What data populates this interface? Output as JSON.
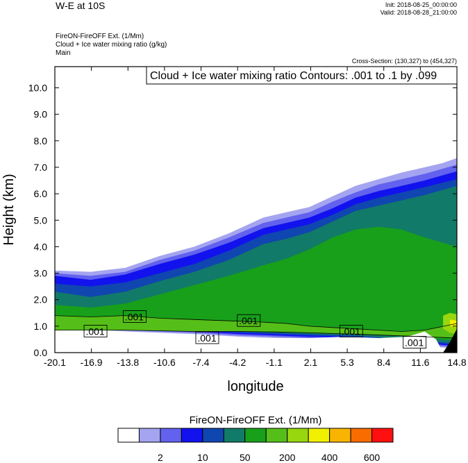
{
  "header": {
    "title": "W-E at 10S",
    "init": "Init: 2018-08-25_00:00:00",
    "valid": "Valid: 2018-08-28_21:00:00",
    "field_line1": "FireON-FireOFF Ext.   (1/Mm)",
    "field_line2": "Cloud + Ice water mixing ratio   (g/kg)",
    "field_line3": "Main",
    "cross_section": "Cross-Section: (130,327) to (454,327)"
  },
  "chart_data": {
    "type": "heatmap",
    "title": "Cloud + Ice water mixing ratio Contours: .001 to .1 by .099",
    "xlabel": "longitude",
    "ylabel": "Height (km)",
    "x_ticks": [
      "-20.1",
      "-16.9",
      "-13.8",
      "-10.6",
      "-7.4",
      "-4.2",
      "-1.1",
      "2.1",
      "5.3",
      "8.4",
      "11.6",
      "14.8"
    ],
    "y_ticks": [
      "0.0",
      "1.0",
      "2.0",
      "3.0",
      "4.0",
      "5.0",
      "6.0",
      "7.0",
      "8.0",
      "9.0",
      "10.0"
    ],
    "xlim": [
      -20.1,
      14.8
    ],
    "ylim": [
      0,
      10.8
    ],
    "colorbar": {
      "title": "FireON-FireOFF Ext.  (1/Mm)",
      "colors": [
        "#ffffff",
        "#a4a4f0",
        "#6262ee",
        "#1212ee",
        "#1046b0",
        "#127a68",
        "#18a01a",
        "#56be18",
        "#98d60e",
        "#f0f000",
        "#f8b400",
        "#f86c00",
        "#ff1010"
      ],
      "labels": [
        {
          "after_box": 1,
          "text": "2"
        },
        {
          "after_box": 3,
          "text": "10"
        },
        {
          "after_box": 5,
          "text": "50"
        },
        {
          "after_box": 7,
          "text": "200"
        },
        {
          "after_box": 9,
          "text": "400"
        },
        {
          "after_box": 11,
          "text": "600"
        }
      ]
    },
    "layers": [
      {
        "level": 1,
        "color": "#a4a4f0",
        "top": [
          [
            -20.1,
            3.1
          ],
          [
            -17,
            3.05
          ],
          [
            -14,
            3.2
          ],
          [
            -11,
            3.65
          ],
          [
            -8,
            4.0
          ],
          [
            -5,
            4.5
          ],
          [
            -2,
            5.1
          ],
          [
            0,
            5.3
          ],
          [
            2,
            5.5
          ],
          [
            4,
            5.9
          ],
          [
            6,
            6.3
          ],
          [
            8,
            6.55
          ],
          [
            10,
            6.8
          ],
          [
            12,
            7.0
          ],
          [
            13.5,
            7.15
          ],
          [
            14.8,
            7.35
          ]
        ],
        "bottom": [
          [
            -20.1,
            0.95
          ],
          [
            -14,
            0.8
          ],
          [
            -8,
            0.7
          ],
          [
            -4,
            0.6
          ],
          [
            -1,
            0.55
          ],
          [
            2,
            0.5
          ],
          [
            6,
            0.42
          ],
          [
            9,
            0.32
          ],
          [
            12,
            0.25
          ],
          [
            14.8,
            0.15
          ]
        ]
      },
      {
        "level": 2,
        "color": "#6262ee",
        "top": [
          [
            -20.1,
            3.0
          ],
          [
            -17,
            2.9
          ],
          [
            -14,
            3.05
          ],
          [
            -11,
            3.5
          ],
          [
            -8,
            3.85
          ],
          [
            -5,
            4.35
          ],
          [
            -2,
            4.9
          ],
          [
            0,
            5.1
          ],
          [
            2,
            5.3
          ],
          [
            4,
            5.7
          ],
          [
            6,
            6.05
          ],
          [
            8,
            6.35
          ],
          [
            10,
            6.55
          ],
          [
            12,
            6.75
          ],
          [
            14.8,
            7.1
          ]
        ],
        "bottom": [
          [
            -20.1,
            1.0
          ],
          [
            -14,
            0.85
          ],
          [
            -8,
            0.75
          ],
          [
            -4,
            0.65
          ],
          [
            -1,
            0.6
          ],
          [
            2,
            0.55
          ],
          [
            6,
            0.5
          ],
          [
            9,
            0.4
          ],
          [
            12,
            0.3
          ],
          [
            14.8,
            0.2
          ]
        ]
      },
      {
        "level": 3,
        "color": "#1212ee",
        "top": [
          [
            -20.1,
            2.9
          ],
          [
            -17,
            2.75
          ],
          [
            -14,
            2.95
          ],
          [
            -11,
            3.35
          ],
          [
            -8,
            3.7
          ],
          [
            -5,
            4.15
          ],
          [
            -2,
            4.7
          ],
          [
            0,
            4.9
          ],
          [
            2,
            5.1
          ],
          [
            4,
            5.45
          ],
          [
            6,
            5.85
          ],
          [
            8,
            6.1
          ],
          [
            10,
            6.3
          ],
          [
            12,
            6.5
          ],
          [
            14.8,
            6.85
          ]
        ],
        "bottom": [
          [
            -20.1,
            1.05
          ],
          [
            -14,
            0.9
          ],
          [
            -8,
            0.8
          ],
          [
            -4,
            0.7
          ],
          [
            -1,
            0.65
          ],
          [
            2,
            0.6
          ],
          [
            6,
            0.55
          ],
          [
            9,
            0.45
          ],
          [
            12,
            0.35
          ],
          [
            14.8,
            0.25
          ]
        ]
      },
      {
        "level": 4,
        "color": "#1046b0",
        "top": [
          [
            -20.1,
            2.6
          ],
          [
            -17,
            2.5
          ],
          [
            -14,
            2.65
          ],
          [
            -11,
            3.0
          ],
          [
            -8,
            3.35
          ],
          [
            -5,
            3.85
          ],
          [
            -2,
            4.45
          ],
          [
            0,
            4.65
          ],
          [
            2,
            4.85
          ],
          [
            4,
            5.2
          ],
          [
            6,
            5.6
          ],
          [
            8,
            5.85
          ],
          [
            10,
            6.05
          ],
          [
            12,
            6.25
          ],
          [
            14.8,
            6.55
          ]
        ],
        "bottom": [
          [
            -20.1,
            1.1
          ],
          [
            -14,
            0.95
          ],
          [
            -8,
            0.85
          ],
          [
            -4,
            0.75
          ],
          [
            -1,
            0.7
          ],
          [
            2,
            0.65
          ],
          [
            6,
            0.6
          ],
          [
            9,
            0.5
          ],
          [
            12,
            0.4
          ],
          [
            14.8,
            0.3
          ]
        ]
      },
      {
        "level": 5,
        "color": "#127a68",
        "top": [
          [
            -20.1,
            2.3
          ],
          [
            -17,
            2.1
          ],
          [
            -14,
            2.3
          ],
          [
            -11,
            2.7
          ],
          [
            -8,
            3.05
          ],
          [
            -5,
            3.5
          ],
          [
            -2,
            4.1
          ],
          [
            0,
            4.3
          ],
          [
            2,
            4.55
          ],
          [
            4,
            4.95
          ],
          [
            6,
            5.35
          ],
          [
            8,
            5.55
          ],
          [
            10,
            5.75
          ],
          [
            12,
            5.95
          ],
          [
            14.8,
            6.3
          ]
        ],
        "bottom": [
          [
            -20.1,
            1.15
          ],
          [
            -14,
            1.0
          ],
          [
            -8,
            0.9
          ],
          [
            -4,
            0.8
          ],
          [
            -1,
            0.75
          ],
          [
            2,
            0.7
          ],
          [
            6,
            0.65
          ],
          [
            9,
            0.55
          ],
          [
            12,
            0.45
          ],
          [
            14.8,
            0.35
          ]
        ]
      },
      {
        "level": 6,
        "color": "#18a01a",
        "top": [
          [
            -20.1,
            1.8
          ],
          [
            -17,
            1.7
          ],
          [
            -14,
            1.85
          ],
          [
            -11,
            2.2
          ],
          [
            -8,
            2.55
          ],
          [
            -5,
            2.9
          ],
          [
            -2,
            3.3
          ],
          [
            0,
            3.55
          ],
          [
            2,
            3.9
          ],
          [
            4,
            4.35
          ],
          [
            6,
            4.65
          ],
          [
            8,
            4.75
          ],
          [
            10,
            4.65
          ],
          [
            12,
            4.35
          ],
          [
            14.8,
            4.0
          ]
        ],
        "bottom": [
          [
            -20.1,
            1.2
          ],
          [
            -14,
            1.05
          ],
          [
            -8,
            0.95
          ],
          [
            -4,
            0.9
          ],
          [
            -1,
            0.85
          ],
          [
            2,
            0.8
          ],
          [
            6,
            0.75
          ],
          [
            9,
            0.65
          ],
          [
            12,
            0.55
          ],
          [
            14.8,
            0.45
          ]
        ]
      },
      {
        "level": 7,
        "color": "#56be18",
        "top": [
          [
            -20.1,
            1.4
          ],
          [
            -17,
            1.35
          ],
          [
            -14,
            1.4
          ],
          [
            -11,
            1.3
          ],
          [
            -8,
            1.25
          ],
          [
            -5,
            1.2
          ],
          [
            -2,
            1.15
          ],
          [
            0,
            1.1
          ],
          [
            2,
            1.0
          ],
          [
            4,
            0.95
          ],
          [
            6,
            0.9
          ],
          [
            8,
            0.85
          ],
          [
            10,
            0.8
          ],
          [
            12,
            0.85
          ],
          [
            14.8,
            1.1
          ]
        ],
        "bottom": [
          [
            -20.1,
            0.85
          ],
          [
            -14,
            0.85
          ],
          [
            -8,
            0.8
          ],
          [
            -4,
            0.8
          ],
          [
            -1,
            0.78
          ],
          [
            2,
            0.75
          ],
          [
            6,
            0.7
          ],
          [
            9,
            0.65
          ],
          [
            12,
            0.6
          ],
          [
            14.8,
            0.55
          ]
        ]
      },
      {
        "level": 8,
        "color": "#98d60e",
        "top": [
          [
            13.6,
            1.4
          ],
          [
            14.2,
            1.5
          ],
          [
            14.8,
            1.45
          ]
        ],
        "bottom": [
          [
            14.8,
            0.7
          ],
          [
            14.2,
            0.75
          ],
          [
            13.6,
            0.9
          ]
        ]
      },
      {
        "level": 9,
        "color": "#f0f000",
        "top": [
          [
            14.2,
            1.25
          ],
          [
            14.8,
            1.2
          ]
        ],
        "bottom": [
          [
            14.8,
            0.95
          ],
          [
            14.2,
            1.0
          ]
        ]
      }
    ],
    "clear_zones": [
      {
        "color": "#ffffff",
        "points": [
          [
            -1,
            0.0
          ],
          [
            -1,
            0.55
          ],
          [
            2,
            0.55
          ],
          [
            5,
            0.6
          ],
          [
            8,
            0.55
          ],
          [
            10.5,
            0.6
          ],
          [
            12,
            0.8
          ],
          [
            13,
            0.5
          ],
          [
            13.6,
            0.0
          ]
        ]
      },
      {
        "color": "#000000",
        "points": [
          [
            13.6,
            0.0
          ],
          [
            14.8,
            0.0
          ],
          [
            14.8,
            0.9
          ],
          [
            14.2,
            0.4
          ]
        ]
      }
    ],
    "contour_labels": [
      {
        "text": ".001",
        "x": -16.6,
        "y": 0.8
      },
      {
        "text": ".001",
        "x": -13.2,
        "y": 1.35
      },
      {
        "text": ".001",
        "x": -6.9,
        "y": 0.55
      },
      {
        "text": ".001",
        "x": -3.3,
        "y": 1.2
      },
      {
        "text": ".001",
        "x": 5.6,
        "y": 0.8
      },
      {
        "text": ".001",
        "x": 11.1,
        "y": 0.38
      }
    ]
  }
}
